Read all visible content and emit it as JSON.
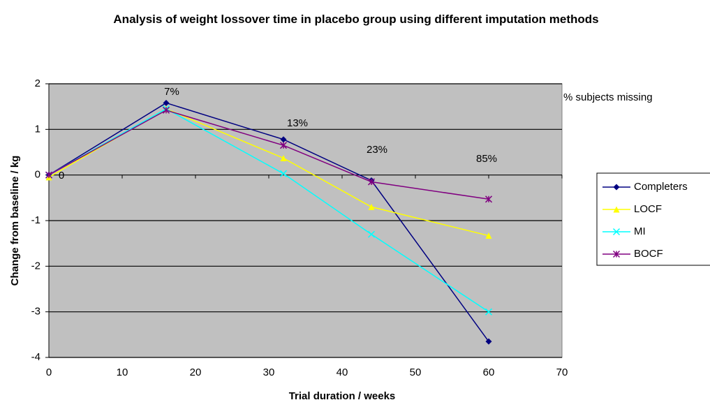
{
  "chart_data": {
    "type": "line",
    "title": "Analysis of weight lossover time in placebo group using different imputation methods",
    "x_label": "Trial duration / weeks",
    "y_label": "Change from baseline / kg",
    "x": [
      0,
      16,
      32,
      44,
      60
    ],
    "series": [
      {
        "name": "Completers",
        "color": "#000080",
        "marker": "diamond",
        "values": [
          0,
          1.58,
          0.78,
          -0.12,
          -3.65
        ]
      },
      {
        "name": "LOCF",
        "color": "#ffff00",
        "marker": "triangle",
        "values": [
          -0.05,
          1.45,
          0.37,
          -0.7,
          -1.33
        ]
      },
      {
        "name": "MI",
        "color": "#00ffff",
        "marker": "x",
        "values": [
          0,
          1.45,
          0.03,
          -1.3,
          -3.0
        ]
      },
      {
        "name": "BOCF",
        "color": "#800080",
        "marker": "star",
        "values": [
          0,
          1.42,
          0.65,
          -0.15,
          -0.53
        ]
      }
    ],
    "annotations": [
      "0",
      "7%",
      "13%",
      "23%",
      "85%",
      "% subjects missing"
    ],
    "xlim": [
      0,
      70
    ],
    "xticks": [
      0,
      10,
      20,
      30,
      40,
      50,
      60,
      70
    ],
    "ylim": [
      -4,
      2
    ],
    "yticks": [
      -4,
      -3,
      -2,
      -1,
      0,
      1,
      2
    ],
    "grid": true,
    "legend": "right"
  }
}
